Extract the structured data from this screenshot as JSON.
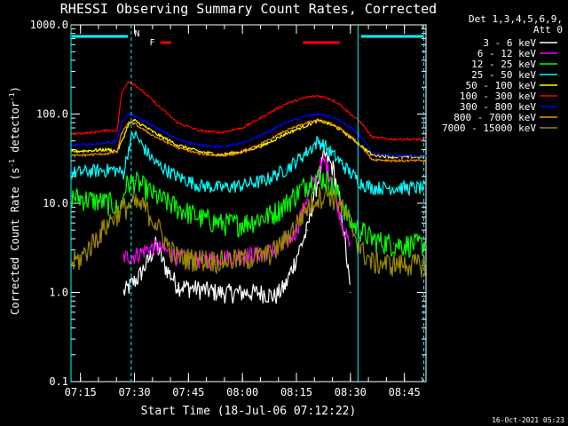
{
  "chart_data": {
    "type": "line",
    "title": "RHESSI Observing Summary Count Rates, Corrected",
    "xlabel": "Start Time (18-Jul-06 07:12:22)",
    "ylabel_main": "Corrected Count Rate (s",
    "ylabel_sup1": "-1",
    "ylabel_mid": " detector",
    "ylabel_sup2": "-1",
    "ylabel_end": ")",
    "y_scale": "log",
    "ylim": [
      0.1,
      1000
    ],
    "xlim": [
      7.2061,
      8.85
    ],
    "x_unit": "hours UT",
    "x_ticks": [
      {
        "v": 7.25,
        "label": "07:15"
      },
      {
        "v": 7.5,
        "label": "07:30"
      },
      {
        "v": 7.75,
        "label": "07:45"
      },
      {
        "v": 8.0,
        "label": "08:00"
      },
      {
        "v": 8.25,
        "label": "08:15"
      },
      {
        "v": 8.5,
        "label": "08:30"
      },
      {
        "v": 8.75,
        "label": "08:45"
      }
    ],
    "y_ticks": [
      {
        "v": 0.1,
        "label": "0.1"
      },
      {
        "v": 1,
        "label": "1.0"
      },
      {
        "v": 10,
        "label": "10.0"
      },
      {
        "v": 100,
        "label": "100.0"
      },
      {
        "v": 1000,
        "label": "1000.0"
      }
    ],
    "legend_header": [
      "Det 1,3,4,5,6,9,",
      "Att 0"
    ],
    "legend_position": "right",
    "series": [
      {
        "name": "3 - 6 keV",
        "color": "#ffffff",
        "x": [
          7.45,
          7.48,
          7.52,
          7.56,
          7.6,
          7.64,
          7.7,
          7.9,
          8.0,
          8.1,
          8.15,
          8.2,
          8.25,
          8.3,
          8.33,
          8.38,
          8.42,
          8.46,
          8.5
        ],
        "y": [
          1,
          1.2,
          1.5,
          2.2,
          3.5,
          2.0,
          1.2,
          1.0,
          1.0,
          1.0,
          0.9,
          1.2,
          2.5,
          5,
          12,
          35,
          25,
          8,
          1
        ]
      },
      {
        "name": "6 - 12 keV",
        "color": "#ff00ff",
        "x": [
          7.45,
          7.5,
          7.55,
          7.6,
          7.7,
          7.8,
          7.9,
          8.0,
          8.1,
          8.15,
          8.2,
          8.25,
          8.3,
          8.35,
          8.38,
          8.41,
          8.45,
          8.5
        ],
        "y": [
          2.5,
          2.6,
          3.0,
          3.3,
          2.5,
          2.3,
          2.5,
          2.6,
          2.8,
          3.0,
          3.5,
          5,
          12,
          22,
          30,
          20,
          8,
          3
        ]
      },
      {
        "name": "12 - 25 keV",
        "color": "#00ff00",
        "x": [
          7.21,
          7.3,
          7.4,
          7.43,
          7.46,
          7.5,
          7.55,
          7.6,
          7.7,
          7.8,
          7.9,
          8.0,
          8.1,
          8.15,
          8.2,
          8.25,
          8.3,
          8.35,
          8.4,
          8.45,
          8.5,
          8.55,
          8.6,
          8.7,
          8.8,
          8.85
        ],
        "y": [
          12,
          11,
          10,
          8,
          16,
          18,
          15,
          12,
          9,
          7,
          6,
          6,
          7,
          8,
          10,
          13,
          17,
          20,
          18,
          12,
          6,
          5,
          4,
          3.5,
          3.5,
          3.5
        ]
      },
      {
        "name": "25 - 50 keV",
        "color": "#00ffff",
        "x": [
          7.21,
          7.3,
          7.4,
          7.45,
          7.48,
          7.5,
          7.55,
          7.6,
          7.7,
          7.8,
          7.9,
          8.0,
          8.1,
          8.2,
          8.25,
          8.3,
          8.35,
          8.38,
          8.42,
          8.46,
          8.5,
          8.55,
          8.6,
          8.7,
          8.8,
          8.85
        ],
        "y": [
          22,
          23,
          24,
          22,
          50,
          60,
          40,
          28,
          20,
          16,
          15,
          16,
          18,
          24,
          30,
          38,
          50,
          45,
          35,
          28,
          22,
          17,
          15,
          15,
          15,
          15
        ]
      },
      {
        "name": "50 - 100 keV",
        "color": "#ffff00",
        "x": [
          7.21,
          7.3,
          7.38,
          7.42,
          7.45,
          7.47,
          7.5,
          7.55,
          7.6,
          7.7,
          7.8,
          7.9,
          8.0,
          8.1,
          8.2,
          8.3,
          8.35,
          8.4,
          8.45,
          8.5,
          8.55,
          8.6,
          8.7,
          8.8,
          8.85
        ],
        "y": [
          38,
          39,
          40,
          38,
          55,
          75,
          85,
          72,
          60,
          45,
          38,
          35,
          38,
          45,
          60,
          75,
          85,
          78,
          68,
          55,
          44,
          35,
          33,
          33,
          33
        ]
      },
      {
        "name": "100 - 300 keV",
        "color": "#ff0000",
        "x": [
          7.21,
          7.3,
          7.38,
          7.42,
          7.44,
          7.47,
          7.5,
          7.55,
          7.6,
          7.7,
          7.8,
          7.9,
          8.0,
          8.1,
          8.2,
          8.3,
          8.35,
          8.4,
          8.45,
          8.5,
          8.55,
          8.6,
          8.7,
          8.8,
          8.85
        ],
        "y": [
          60,
          62,
          66,
          65,
          170,
          230,
          215,
          170,
          130,
          80,
          65,
          62,
          70,
          95,
          130,
          155,
          160,
          150,
          130,
          100,
          80,
          55,
          52,
          52,
          52
        ]
      },
      {
        "name": "300 - 800 keV",
        "color": "#0000ff",
        "x": [
          7.21,
          7.3,
          7.38,
          7.42,
          7.44,
          7.47,
          7.5,
          7.55,
          7.6,
          7.7,
          7.8,
          7.9,
          8.0,
          8.1,
          8.2,
          8.3,
          8.35,
          8.4,
          8.45,
          8.5,
          8.55,
          8.6,
          8.7,
          8.8,
          8.85
        ],
        "y": [
          45,
          46,
          48,
          50,
          80,
          100,
          95,
          82,
          70,
          52,
          45,
          43,
          47,
          60,
          80,
          95,
          100,
          95,
          85,
          70,
          56,
          36,
          34,
          34,
          34
        ]
      },
      {
        "name": "800 - 7000 keV",
        "color": "#ff8c00",
        "x": [
          7.21,
          7.3,
          7.38,
          7.42,
          7.44,
          7.47,
          7.5,
          7.55,
          7.6,
          7.7,
          7.8,
          7.9,
          8.0,
          8.1,
          8.2,
          8.3,
          8.35,
          8.4,
          8.45,
          8.5,
          8.55,
          8.6,
          8.7,
          8.8,
          8.85
        ],
        "y": [
          34,
          35,
          36,
          38,
          60,
          80,
          78,
          65,
          55,
          42,
          36,
          34,
          37,
          48,
          65,
          80,
          85,
          80,
          70,
          56,
          44,
          31,
          30,
          30,
          30
        ]
      },
      {
        "name": "7000 - 15000 keV",
        "color": "#9b8a00",
        "x": [
          7.21,
          7.25,
          7.3,
          7.35,
          7.4,
          7.45,
          7.5,
          7.55,
          7.6,
          7.65,
          7.7,
          7.8,
          7.9,
          8.0,
          8.1,
          8.15,
          8.2,
          8.25,
          8.3,
          8.35,
          8.4,
          8.45,
          8.5,
          8.55,
          8.6,
          8.7,
          8.8,
          8.85
        ],
        "y": [
          2.2,
          2.4,
          3.5,
          5,
          7,
          9,
          10,
          9,
          6,
          3.5,
          2.5,
          2.4,
          2.3,
          2.4,
          2.6,
          3,
          4,
          6,
          9,
          12,
          13,
          10,
          6,
          3,
          2.2,
          2.1,
          2.1,
          2.1
        ]
      }
    ],
    "vertical_lines": [
      {
        "x": 7.2061,
        "style": "solid",
        "color": "#00ffff"
      },
      {
        "x": 7.485,
        "style": "dashed",
        "color": "#00ffff"
      },
      {
        "x": 8.535,
        "style": "solid",
        "color": "#00ffff"
      },
      {
        "x": 8.84,
        "style": "dashed",
        "color": "#00ffff"
      }
    ],
    "top_bars": [
      {
        "x1": 7.21,
        "x2": 7.47,
        "color": "#00ffff",
        "level": "eclipse"
      },
      {
        "x1": 8.55,
        "x2": 8.84,
        "color": "#00ffff",
        "level": "eclipse"
      },
      {
        "x1": 7.62,
        "x2": 7.67,
        "color": "#ff0000",
        "level": "flare"
      },
      {
        "x1": 8.28,
        "x2": 8.45,
        "color": "#ff0000",
        "level": "flare"
      }
    ],
    "annotations": [
      {
        "text": "N",
        "x": 7.5,
        "color": "#00ffff"
      },
      {
        "text": "F",
        "x": 7.57,
        "color": "#ff0000"
      }
    ],
    "footer": "16-Oct-2021 05:23"
  }
}
